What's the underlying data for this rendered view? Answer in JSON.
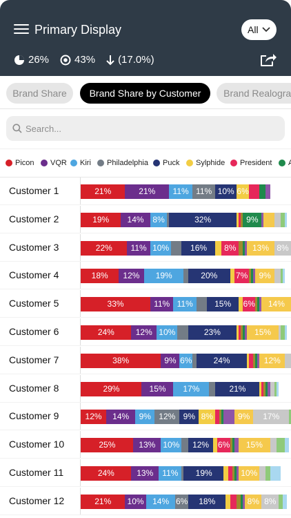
{
  "header": {
    "title": "Primary Display",
    "filter": "All",
    "stats": [
      {
        "icon": "pie-chart-icon",
        "value": "26%"
      },
      {
        "icon": "target-icon",
        "value": "43%"
      },
      {
        "icon": "arrow-down-icon",
        "value": "(17.0%)"
      }
    ]
  },
  "tabs": [
    {
      "label": "Brand Share",
      "active": false
    },
    {
      "label": "Brand Share by Customer",
      "active": true
    },
    {
      "label": "Brand Realogram",
      "active": false
    }
  ],
  "search": {
    "placeholder": "Search..."
  },
  "legend": [
    {
      "name": "Picon",
      "color": "#d62028"
    },
    {
      "name": "VQR",
      "color": "#6b2e8c"
    },
    {
      "name": "Kiri",
      "color": "#4ea6e0"
    },
    {
      "name": "Philadelphia",
      "color": "#737c86"
    },
    {
      "name": "Puck",
      "color": "#263574"
    },
    {
      "name": "Sylphide",
      "color": "#f2cd44"
    },
    {
      "name": "President",
      "color": "#e6285a"
    },
    {
      "name": "A",
      "color": "#1f8a4c"
    }
  ],
  "chart_data": {
    "type": "bar",
    "stacked": true,
    "categories": [
      "Customer 1",
      "Customer 2",
      "Customer 3",
      "Customer 4",
      "Customer 5",
      "Customer 6",
      "Customer 7",
      "Customer 8",
      "Customer 9",
      "Customer 10",
      "Customer 11",
      "Customer 12"
    ],
    "series": [
      {
        "name": "Picon",
        "color": "#d62028",
        "values": [
          21,
          19,
          22,
          18,
          33,
          24,
          38,
          29,
          12,
          25,
          24,
          21
        ]
      },
      {
        "name": "VQR",
        "color": "#6b2e8c",
        "values": [
          21,
          14,
          11,
          12,
          11,
          12,
          9,
          15,
          14,
          13,
          13,
          10
        ]
      },
      {
        "name": "Kiri",
        "color": "#4ea6e0",
        "values": [
          11,
          8,
          10,
          19,
          11,
          10,
          6,
          17,
          9,
          10,
          11,
          14
        ]
      },
      {
        "name": "Philadelphia",
        "color": "#737c86",
        "values": [
          11,
          1,
          5,
          2,
          5,
          5,
          2,
          3,
          12,
          3,
          1,
          6
        ]
      },
      {
        "name": "Puck",
        "color": "#263574",
        "values": [
          10,
          32,
          16,
          20,
          15,
          23,
          24,
          21,
          9,
          12,
          19,
          18
        ]
      },
      {
        "name": "Sylphide",
        "color": "#f2cd44",
        "values": [
          6,
          1,
          3,
          2,
          2,
          1,
          1,
          1,
          8,
          2,
          2,
          2
        ]
      },
      {
        "name": "President",
        "color": "#e6285a",
        "values": [
          5,
          1,
          8,
          7,
          6,
          1,
          2,
          1,
          2,
          6,
          2,
          3
        ]
      },
      {
        "name": "",
        "color": "#9e8a2e",
        "values": [
          0,
          1,
          2,
          1,
          1,
          1,
          1,
          1,
          1,
          1,
          1,
          2
        ]
      },
      {
        "name": "",
        "color": "#1f8a4c",
        "values": [
          3,
          9,
          1,
          1,
          1,
          1,
          1,
          1,
          1,
          1,
          1,
          1
        ]
      },
      {
        "name": "",
        "color": "#8e56a8",
        "values": [
          2,
          1,
          1,
          1,
          1,
          1,
          1,
          1,
          5,
          2,
          1,
          1
        ]
      },
      {
        "name": "",
        "color": "#f5c94c",
        "values": [
          0,
          5,
          13,
          9,
          14,
          15,
          12,
          0,
          9,
          15,
          10,
          8
        ]
      },
      {
        "name": "",
        "color": "#c8c8c8",
        "values": [
          0,
          3,
          8,
          3,
          2,
          1,
          3,
          2,
          17,
          3,
          3,
          8
        ]
      },
      {
        "name": "",
        "color": "#8fca7a",
        "values": [
          0,
          2,
          1,
          1,
          1,
          2,
          1,
          1,
          1,
          4,
          2,
          2
        ]
      },
      {
        "name": "",
        "color": "#a9d8f0",
        "values": [
          0,
          1,
          1,
          1,
          1,
          1,
          1,
          1,
          1,
          2,
          5,
          2
        ]
      }
    ],
    "value_suffix": "%"
  }
}
